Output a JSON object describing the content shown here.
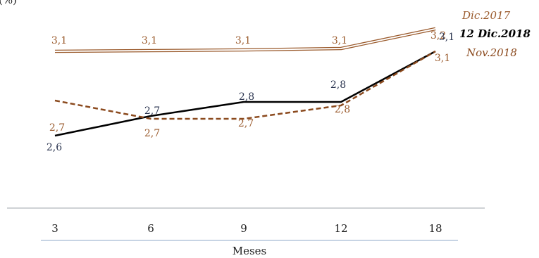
{
  "chart_data": {
    "type": "line",
    "title": "",
    "ylabel_fragment": "(%)",
    "xlabel": "Meses",
    "categories": [
      "3",
      "6",
      "9",
      "12",
      "18"
    ],
    "grid": false,
    "ylim": [
      2.0,
      3.3
    ],
    "series": [
      {
        "name": "Dic.2017",
        "label": "Dic.2017",
        "values": [
          3.1,
          3.1,
          3.1,
          3.1,
          3.2
        ],
        "data_labels": [
          "3,1",
          "3,1",
          "3,1",
          "3,1",
          "3,2"
        ],
        "style": "double",
        "color": "#9a5a2c"
      },
      {
        "name": "12 Dic.2018",
        "label": "12 Dic.2018",
        "values": [
          2.6,
          2.7,
          2.8,
          2.8,
          3.1
        ],
        "data_labels": [
          "2,6",
          "2,7",
          "2,8",
          "2,8",
          "3,1"
        ],
        "style": "solid",
        "color": "#000000"
      },
      {
        "name": "Nov.2018",
        "label": "Nov.2018",
        "values": [
          2.7,
          2.7,
          2.7,
          2.8,
          3.1
        ],
        "data_labels": [
          "2,7",
          "2,7",
          "2,7",
          "2,8",
          "3,1"
        ],
        "style": "dashed",
        "color": "#8b4a1e"
      }
    ],
    "colors": {
      "data_label_dark": "#2b3550",
      "data_label_brown": "#9a5a2c",
      "axis_line": "#8fa9c8"
    }
  }
}
